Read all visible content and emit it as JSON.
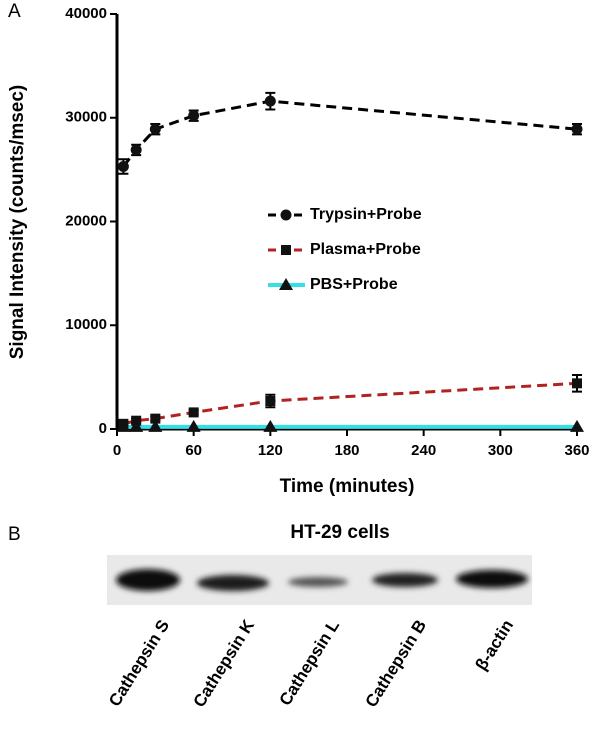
{
  "chart_data": {
    "type": "line",
    "panel_label": "A",
    "x_label": "Time (minutes)",
    "y_label": "Signal Intensity (counts/msec)",
    "x": [
      5,
      15,
      30,
      60,
      120,
      360
    ],
    "series": [
      {
        "name": "Trypsin+Probe",
        "color": "#000000",
        "dash": true,
        "marker": "circle",
        "values": [
          25300,
          26900,
          28900,
          30200,
          31600,
          28900
        ],
        "errors": [
          700,
          500,
          500,
          500,
          800,
          500
        ]
      },
      {
        "name": "Plasma+Probe",
        "color": "#b22222",
        "dash": true,
        "marker": "square",
        "values": [
          500,
          800,
          1000,
          1600,
          2700,
          4400
        ],
        "errors": [
          200,
          200,
          200,
          200,
          600,
          800
        ]
      },
      {
        "name": "PBS+Probe",
        "color": "#33e0e8",
        "dash": false,
        "marker": "triangle",
        "values": [
          200,
          200,
          200,
          200,
          200,
          200
        ]
      }
    ],
    "xlim": [
      0,
      360
    ],
    "xticks": [
      0,
      60,
      120,
      180,
      240,
      300,
      360
    ],
    "ylim": [
      0,
      40000
    ],
    "yticks": [
      0,
      10000,
      20000,
      30000,
      40000
    ],
    "grid": false,
    "legend": "center"
  },
  "panel_b": {
    "label": "B",
    "title": "HT-29 cells",
    "lanes": [
      "Cathepsin S",
      "Cathepsin K",
      "Cathepsin L",
      "Cathepsin B",
      "β-actin"
    ]
  }
}
